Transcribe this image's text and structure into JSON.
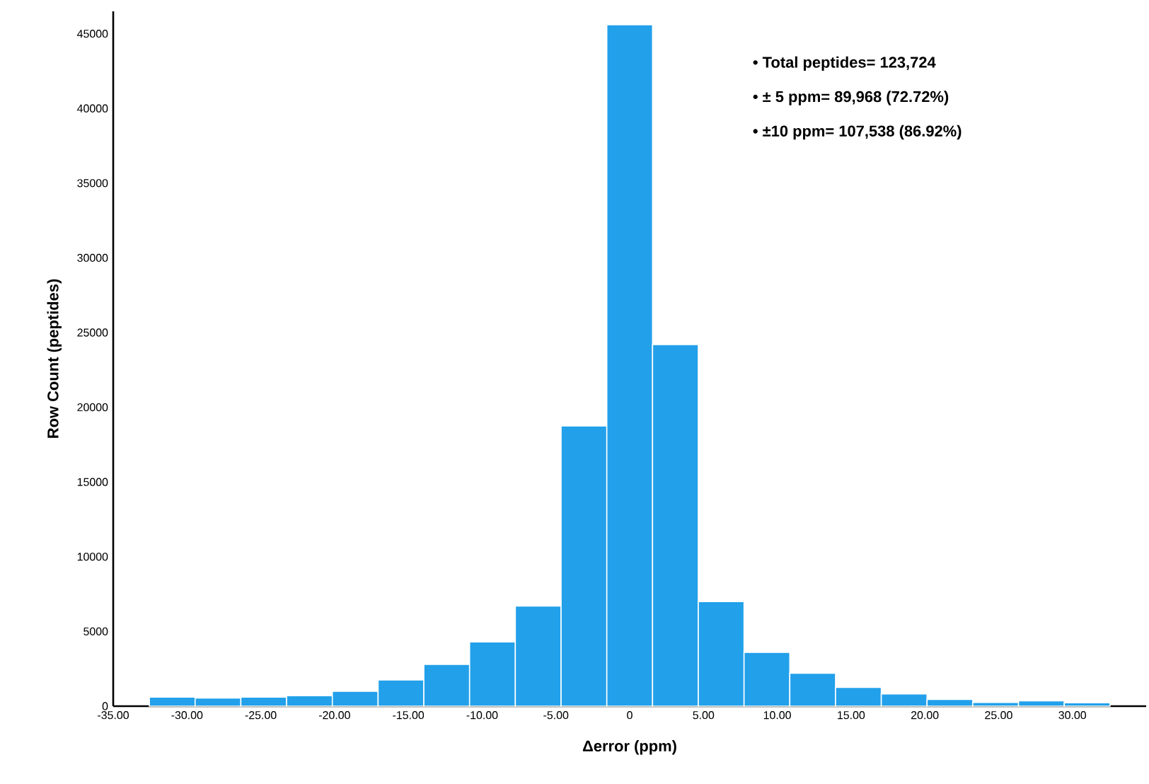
{
  "chart_data": {
    "type": "histogram",
    "xlabel": "Δerror (ppm)",
    "ylabel": "Row Count (peptides)",
    "bins": [
      -32.55,
      -29.45,
      -26.35,
      -23.25,
      -20.15,
      -17.05,
      -13.95,
      -10.85,
      -7.75,
      -4.65,
      -1.55,
      1.55,
      4.65,
      7.75,
      10.85,
      13.95,
      17.05,
      20.15,
      23.25,
      26.35,
      29.45,
      32.55
    ],
    "values": [
      600,
      550,
      600,
      700,
      1000,
      1750,
      2800,
      4300,
      6700,
      18750,
      45600,
      24200,
      7000,
      3600,
      2200,
      1250,
      820,
      450,
      250,
      350,
      220
    ],
    "color": "#22a0ea",
    "xlim": [
      -35,
      35
    ],
    "ylim": [
      0,
      46500
    ],
    "xticks": [
      {
        "value": -35,
        "label": "-35.00"
      },
      {
        "value": -30,
        "label": "-30.00"
      },
      {
        "value": -25,
        "label": "-25.00"
      },
      {
        "value": -20,
        "label": "-20.00"
      },
      {
        "value": -15,
        "label": "-15.00"
      },
      {
        "value": -10,
        "label": "-10.00"
      },
      {
        "value": -5,
        "label": "-5.00"
      },
      0,
      {
        "value": 5,
        "label": "5.00"
      },
      {
        "value": 10,
        "label": "10.00"
      },
      {
        "value": 15,
        "label": "15.00"
      },
      {
        "value": 20,
        "label": "20.00"
      },
      {
        "value": 25,
        "label": "25.00"
      },
      {
        "value": 30,
        "label": "30.00"
      }
    ],
    "yticks": [
      0,
      5000,
      10000,
      15000,
      20000,
      25000,
      30000,
      35000,
      40000,
      45000
    ],
    "grid": false,
    "annotations": [
      "•   Total peptides= 123,724",
      "•   ± 5 ppm= 89,968 (72.72%)",
      "•   ±10 ppm= 107,538 (86.92%)"
    ]
  }
}
